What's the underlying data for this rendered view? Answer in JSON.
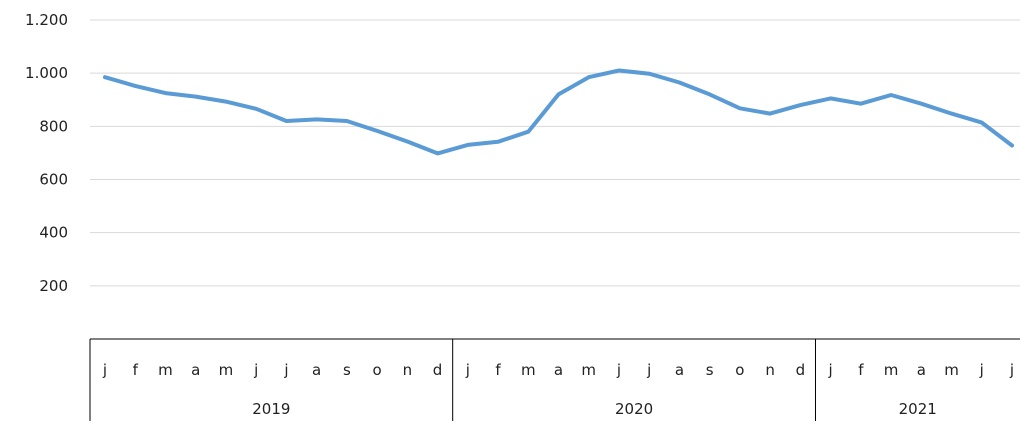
{
  "chart_data": {
    "type": "line",
    "title": "",
    "xlabel": "",
    "ylabel": "",
    "ylim": [
      0,
      1200
    ],
    "y_ticks": [
      {
        "value": 200,
        "label": "200"
      },
      {
        "value": 400,
        "label": "400"
      },
      {
        "value": 600,
        "label": "600"
      },
      {
        "value": 800,
        "label": "800"
      },
      {
        "value": 1000,
        "label": "1.000"
      },
      {
        "value": 1200,
        "label": "1.200"
      }
    ],
    "grid": true,
    "legend": "none",
    "years": [
      {
        "label": "2019",
        "months": 12
      },
      {
        "label": "2020",
        "months": 12
      },
      {
        "label": "2021",
        "months": 7
      }
    ],
    "categories": [
      "j",
      "f",
      "m",
      "a",
      "m",
      "j",
      "j",
      "a",
      "s",
      "o",
      "n",
      "d",
      "j",
      "f",
      "m",
      "a",
      "m",
      "j",
      "j",
      "a",
      "s",
      "o",
      "n",
      "d",
      "j",
      "f",
      "m",
      "a",
      "m",
      "j",
      "j"
    ],
    "series": [
      {
        "color": "#5b9bd5",
        "values": [
          985,
          952,
          925,
          912,
          893,
          866,
          820,
          826,
          820,
          783,
          743,
          698,
          730,
          742,
          780,
          920,
          985,
          1010,
          998,
          965,
          920,
          868,
          848,
          880,
          905,
          885,
          918,
          885,
          848,
          814,
          728
        ]
      }
    ]
  }
}
